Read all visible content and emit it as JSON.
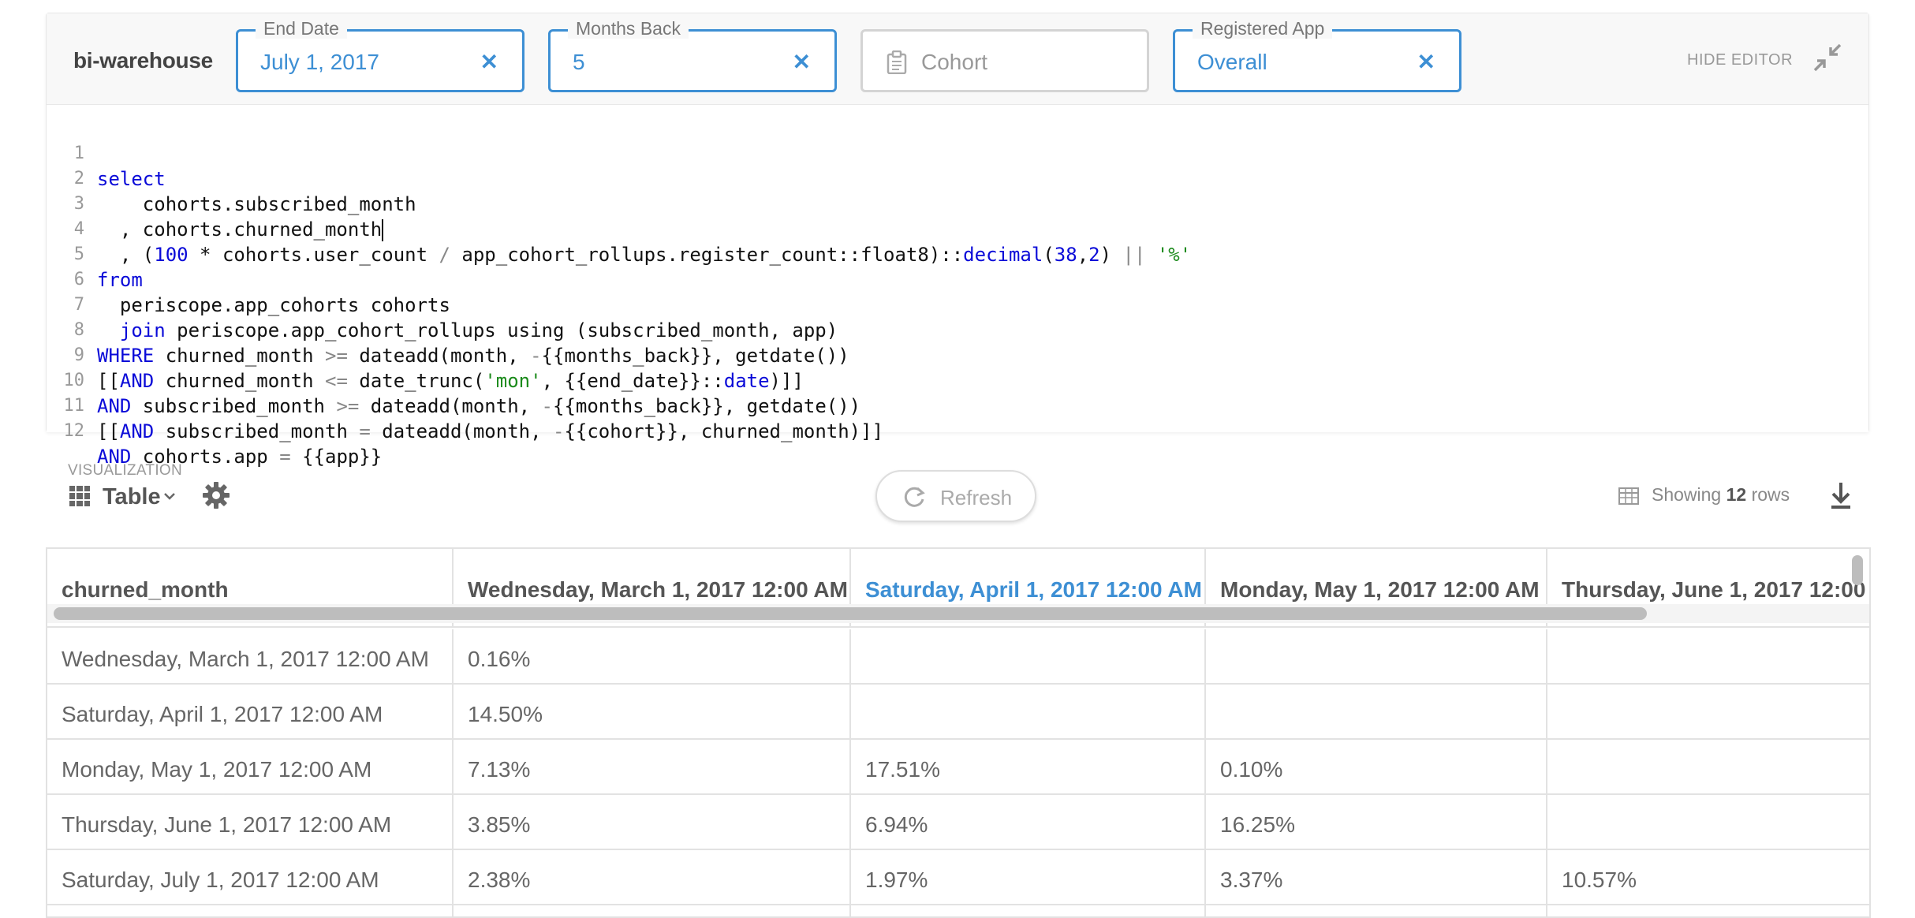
{
  "editor": {
    "db_name": "bi-warehouse",
    "filters": [
      {
        "label": "End Date",
        "value": "July 1, 2017",
        "clear": "✕",
        "active": true
      },
      {
        "label": "Months Back",
        "value": "5",
        "clear": "✕",
        "active": true
      },
      {
        "label": "",
        "value": "Cohort",
        "clear": "",
        "active": false
      },
      {
        "label": "Registered App",
        "value": "Overall",
        "clear": "✕",
        "active": true
      }
    ],
    "hide_editor_label": "HIDE EDITOR",
    "line_numbers": [
      "1",
      "2",
      "3",
      "4",
      "5",
      "6",
      "7",
      "8",
      "9",
      "10",
      "11",
      "12"
    ]
  },
  "visualization": {
    "section_label": "VISUALIZATION",
    "type_label": "Table",
    "refresh_label": "Refresh",
    "rows_prefix": "Showing",
    "rows_count": "12",
    "rows_suffix": "rows"
  },
  "table": {
    "columns": [
      "churned_month",
      "Wednesday, March 1, 2017 12:00 AM",
      "Saturday, April 1, 2017 12:00 AM",
      "Monday, May 1, 2017 12:00 AM",
      "Thursday, June 1, 2017 12:00"
    ],
    "rows": [
      [
        "Wednesday, March 1, 2017 12:00 AM",
        "0.16%",
        "",
        "",
        ""
      ],
      [
        "Saturday, April 1, 2017 12:00 AM",
        "14.50%",
        "",
        "",
        ""
      ],
      [
        "Monday, May 1, 2017 12:00 AM",
        "7.13%",
        "17.51%",
        "0.10%",
        ""
      ],
      [
        "Thursday, June 1, 2017 12:00 AM",
        "3.85%",
        "6.94%",
        "16.25%",
        ""
      ],
      [
        "Saturday, July 1, 2017 12:00 AM",
        "2.38%",
        "1.97%",
        "3.37%",
        "10.57%"
      ],
      [
        "",
        "",
        "",
        "",
        ""
      ]
    ]
  },
  "colors": {
    "accent": "#3d8fd4",
    "keyword": "#0a0ad8",
    "string": "#1a8a1a"
  }
}
